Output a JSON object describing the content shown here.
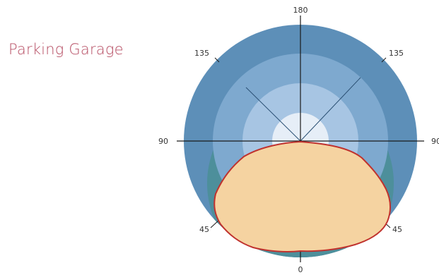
{
  "title": "Parking Garage",
  "labels": {
    "top": "180",
    "left": "90",
    "right": "90",
    "upper_left": "135",
    "upper_right": "135",
    "lower_left": "45",
    "lower_right": "45",
    "bottom": "0"
  },
  "colors": {
    "title": "#b64d63",
    "outer_ring": "#5d8fb8",
    "ring_2": "#7ea9cf",
    "ring_3": "#a7c5e3",
    "center": "#e6eef7",
    "light_zone": "#f5d3a1",
    "light_outline": "#c0322e",
    "lower_fringe": "#4d8f9b",
    "axes": "#1a1a1a"
  }
}
